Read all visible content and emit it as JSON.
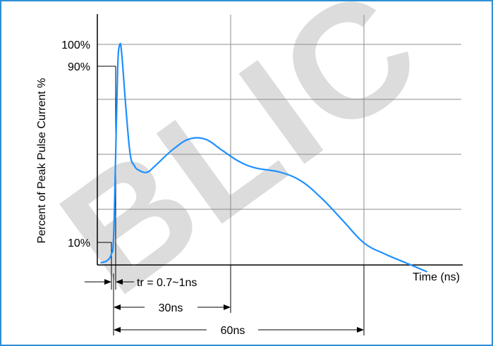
{
  "chart_data": {
    "type": "line",
    "ylabel": "Percent of Peak Pulse Current %",
    "xlabel": "Time (ns)",
    "y_tick_labels": [
      "100%",
      "90%",
      "10%"
    ],
    "annotations": [
      "tr = 0.7~1ns",
      "30ns",
      "60ns"
    ],
    "watermark": "BLIC",
    "ylim": [
      0,
      100
    ],
    "xlim": [
      -3,
      78
    ],
    "grid": true,
    "line_color": "#1e90ff",
    "frame_color": "#2f8fd6",
    "series": [
      {
        "x": [
          -3,
          -1.5,
          -0.5,
          0,
          0.5,
          1,
          1.5,
          2,
          3,
          4,
          5,
          6,
          8,
          10,
          14,
          18,
          22,
          26,
          30,
          34,
          40,
          45,
          50,
          55,
          60,
          65,
          70,
          75
        ],
        "y": [
          1,
          2,
          5,
          12,
          50,
          90,
          100,
          95,
          70,
          50,
          45,
          43,
          42,
          45,
          52,
          57,
          57,
          52,
          47,
          44,
          42,
          38,
          30,
          20,
          10,
          5,
          1,
          -3
        ]
      }
    ]
  }
}
